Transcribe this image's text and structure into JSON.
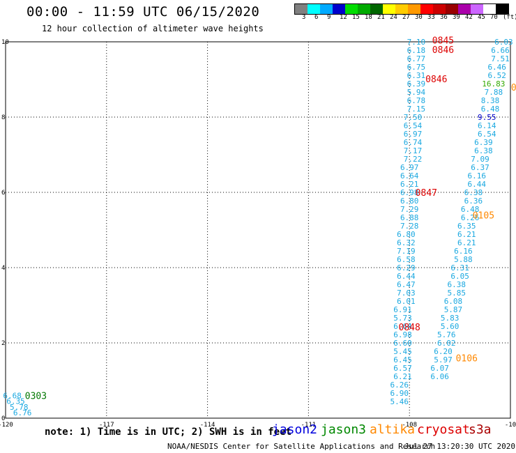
{
  "title": "00:00 - 11:59 UTC 06/15/2020",
  "subtitle": "12 hour collection of altimeter wave heights",
  "scale": {
    "colors": [
      "#808080",
      "#00ffff",
      "#00aaff",
      "#0000cc",
      "#00dd00",
      "#00aa00",
      "#006600",
      "#ffff00",
      "#ffcc00",
      "#ff9900",
      "#ff0000",
      "#cc0000",
      "#990000",
      "#aa00aa",
      "#cc66ff",
      "#ffffff",
      "#000000"
    ],
    "labels": [
      "3",
      "6",
      "9",
      "12",
      "15",
      "18",
      "21",
      "24",
      "27",
      "30",
      "33",
      "36",
      "39",
      "42",
      "45",
      "70",
      "(ft)"
    ]
  },
  "axes": {
    "x_ticks": [
      "-120",
      "-117",
      "-114",
      "-111",
      "-108",
      "-10"
    ],
    "y_ticks": [
      "10",
      "8",
      "6",
      "4",
      "2",
      "0"
    ]
  },
  "chart_data": {
    "type": "scatter",
    "xlabel": "",
    "ylabel": "",
    "xlim": [
      -120,
      -105
    ],
    "ylim": [
      0,
      10
    ],
    "grid": true,
    "series": [
      {
        "color": "#1aa8e0",
        "points": [
          {
            "x": -119.8,
            "y": 0.6,
            "label": "6.68"
          },
          {
            "x": -119.7,
            "y": 0.45,
            "label": "6.35"
          },
          {
            "x": -119.6,
            "y": 0.3,
            "label": "5.78"
          },
          {
            "x": -119.5,
            "y": 0.15,
            "label": "6.76"
          },
          {
            "x": -107.8,
            "y": 10.0,
            "label": "7.10"
          },
          {
            "x": -107.8,
            "y": 9.78,
            "label": "6.18"
          },
          {
            "x": -107.8,
            "y": 9.56,
            "label": "6.77"
          },
          {
            "x": -107.8,
            "y": 9.33,
            "label": "6.75"
          },
          {
            "x": -107.8,
            "y": 9.11,
            "label": "6.31"
          },
          {
            "x": -107.8,
            "y": 8.89,
            "label": "6.39"
          },
          {
            "x": -107.8,
            "y": 8.67,
            "label": "5.94"
          },
          {
            "x": -107.8,
            "y": 8.44,
            "label": "6.78"
          },
          {
            "x": -107.8,
            "y": 8.22,
            "label": "7.15"
          },
          {
            "x": -107.9,
            "y": 8.0,
            "label": "7.50"
          },
          {
            "x": -107.9,
            "y": 7.78,
            "label": "6.54"
          },
          {
            "x": -107.9,
            "y": 7.56,
            "label": "6.97"
          },
          {
            "x": -107.9,
            "y": 7.33,
            "label": "6.74"
          },
          {
            "x": -107.9,
            "y": 7.11,
            "label": "7.17"
          },
          {
            "x": -107.9,
            "y": 6.89,
            "label": "7.22"
          },
          {
            "x": -108.0,
            "y": 6.67,
            "label": "6.97"
          },
          {
            "x": -108.0,
            "y": 6.44,
            "label": "6.64"
          },
          {
            "x": -108.0,
            "y": 6.22,
            "label": "6.21"
          },
          {
            "x": -108.0,
            "y": 6.0,
            "label": "6.98"
          },
          {
            "x": -108.0,
            "y": 5.78,
            "label": "6.80"
          },
          {
            "x": -108.0,
            "y": 5.56,
            "label": "7.29"
          },
          {
            "x": -108.0,
            "y": 5.33,
            "label": "6.88"
          },
          {
            "x": -108.0,
            "y": 5.11,
            "label": "7.28"
          },
          {
            "x": -108.1,
            "y": 4.89,
            "label": "6.80"
          },
          {
            "x": -108.1,
            "y": 4.67,
            "label": "6.32"
          },
          {
            "x": -108.1,
            "y": 4.44,
            "label": "7.19"
          },
          {
            "x": -108.1,
            "y": 4.22,
            "label": "6.58"
          },
          {
            "x": -108.1,
            "y": 4.0,
            "label": "6.29"
          },
          {
            "x": -108.1,
            "y": 3.78,
            "label": "6.44"
          },
          {
            "x": -108.1,
            "y": 3.56,
            "label": "6.47"
          },
          {
            "x": -108.1,
            "y": 3.33,
            "label": "7.03"
          },
          {
            "x": -108.1,
            "y": 3.11,
            "label": "6.01"
          },
          {
            "x": -108.2,
            "y": 2.89,
            "label": "6.91"
          },
          {
            "x": -108.2,
            "y": 2.67,
            "label": "5.73"
          },
          {
            "x": -108.2,
            "y": 2.44,
            "label": "6.64"
          },
          {
            "x": -108.2,
            "y": 2.22,
            "label": "6.98"
          },
          {
            "x": -108.2,
            "y": 2.0,
            "label": "6.60"
          },
          {
            "x": -108.2,
            "y": 1.78,
            "label": "5.45"
          },
          {
            "x": -108.2,
            "y": 1.56,
            "label": "6.45"
          },
          {
            "x": -108.2,
            "y": 1.33,
            "label": "6.57"
          },
          {
            "x": -108.2,
            "y": 1.11,
            "label": "6.21"
          },
          {
            "x": -108.3,
            "y": 0.89,
            "label": "6.26"
          },
          {
            "x": -108.3,
            "y": 0.67,
            "label": "6.90"
          },
          {
            "x": -108.3,
            "y": 0.44,
            "label": "5.46"
          },
          {
            "x": -105.2,
            "y": 10.0,
            "label": "6.03"
          },
          {
            "x": -105.3,
            "y": 9.78,
            "label": "6.66"
          },
          {
            "x": -105.3,
            "y": 9.56,
            "label": "7.51"
          },
          {
            "x": -105.4,
            "y": 9.33,
            "label": "6.46"
          },
          {
            "x": -105.4,
            "y": 9.11,
            "label": "6.52"
          },
          {
            "x": -105.5,
            "y": 8.67,
            "label": "7.88"
          },
          {
            "x": -105.6,
            "y": 8.44,
            "label": "8.38"
          },
          {
            "x": -105.6,
            "y": 8.22,
            "label": "6.48"
          },
          {
            "x": -105.7,
            "y": 7.78,
            "label": "6.14"
          },
          {
            "x": -105.7,
            "y": 7.56,
            "label": "6.54"
          },
          {
            "x": -105.8,
            "y": 7.33,
            "label": "6.39"
          },
          {
            "x": -105.8,
            "y": 7.11,
            "label": "6.38"
          },
          {
            "x": -105.9,
            "y": 6.89,
            "label": "7.09"
          },
          {
            "x": -105.9,
            "y": 6.67,
            "label": "6.37"
          },
          {
            "x": -106.0,
            "y": 6.44,
            "label": "6.16"
          },
          {
            "x": -106.0,
            "y": 6.22,
            "label": "6.44"
          },
          {
            "x": -106.1,
            "y": 6.0,
            "label": "6.38"
          },
          {
            "x": -106.1,
            "y": 5.78,
            "label": "6.36"
          },
          {
            "x": -106.2,
            "y": 5.56,
            "label": "6.48"
          },
          {
            "x": -106.2,
            "y": 5.33,
            "label": "6.26"
          },
          {
            "x": -106.3,
            "y": 5.11,
            "label": "6.35"
          },
          {
            "x": -106.3,
            "y": 4.89,
            "label": "6.21"
          },
          {
            "x": -106.3,
            "y": 4.67,
            "label": "6.21"
          },
          {
            "x": -106.4,
            "y": 4.44,
            "label": "6.16"
          },
          {
            "x": -106.4,
            "y": 4.22,
            "label": "5.88"
          },
          {
            "x": -106.5,
            "y": 4.0,
            "label": "6.31"
          },
          {
            "x": -106.5,
            "y": 3.78,
            "label": "6.05"
          },
          {
            "x": -106.6,
            "y": 3.56,
            "label": "6.38"
          },
          {
            "x": -106.6,
            "y": 3.33,
            "label": "5.85"
          },
          {
            "x": -106.7,
            "y": 3.11,
            "label": "6.08"
          },
          {
            "x": -106.7,
            "y": 2.89,
            "label": "5.87"
          },
          {
            "x": -106.8,
            "y": 2.67,
            "label": "5.83"
          },
          {
            "x": -106.8,
            "y": 2.44,
            "label": "5.60"
          },
          {
            "x": -106.9,
            "y": 2.22,
            "label": "5.76"
          },
          {
            "x": -106.9,
            "y": 2.0,
            "label": "6.02"
          },
          {
            "x": -107.0,
            "y": 1.78,
            "label": "6.20"
          },
          {
            "x": -107.0,
            "y": 1.56,
            "label": "5.97"
          },
          {
            "x": -107.1,
            "y": 1.33,
            "label": "6.07"
          },
          {
            "x": -107.1,
            "y": 1.11,
            "label": "6.06"
          }
        ]
      },
      {
        "color": "#0000cc",
        "points": [
          {
            "x": -105.7,
            "y": 8.0,
            "label": "9.55"
          }
        ]
      },
      {
        "color": "#33aa00",
        "points": [
          {
            "x": -105.5,
            "y": 8.89,
            "label": "16.83"
          }
        ]
      }
    ],
    "pass_times": [
      {
        "x": -107.0,
        "y": 10.05,
        "label": "0845",
        "color": "#dd0000"
      },
      {
        "x": -107.0,
        "y": 9.8,
        "label": "0846",
        "color": "#dd0000"
      },
      {
        "x": -107.2,
        "y": 9.02,
        "label": "0846",
        "color": "#dd0000"
      },
      {
        "x": -107.5,
        "y": 6.0,
        "label": "0847",
        "color": "#dd0000"
      },
      {
        "x": -108.0,
        "y": 2.43,
        "label": "0848",
        "color": "#dd0000"
      },
      {
        "x": -119.1,
        "y": 0.6,
        "label": "0303",
        "color": "#007700"
      },
      {
        "x": -104.9,
        "y": 8.8,
        "label": "0",
        "color": "#ff8800"
      },
      {
        "x": -105.8,
        "y": 5.4,
        "label": "0105",
        "color": "#ff8800"
      },
      {
        "x": -106.3,
        "y": 1.6,
        "label": "0106",
        "color": "#ff8800"
      }
    ]
  },
  "note": "note: 1) Time is in UTC; 2) SWH is in feet",
  "satellites": [
    {
      "label": "jason2",
      "color": "#0000dd"
    },
    {
      "label": "jason3",
      "color": "#008800"
    },
    {
      "label": "altika",
      "color": "#ff8800"
    },
    {
      "label": "cryosat",
      "color": "#dd0000"
    },
    {
      "label": "s3a",
      "color": "#aa0000"
    }
  ],
  "credit": "NOAA/NESDIS Center for Satellite Applications and Research",
  "timestamp": "Jul 27 13:20:30 UTC 2020"
}
